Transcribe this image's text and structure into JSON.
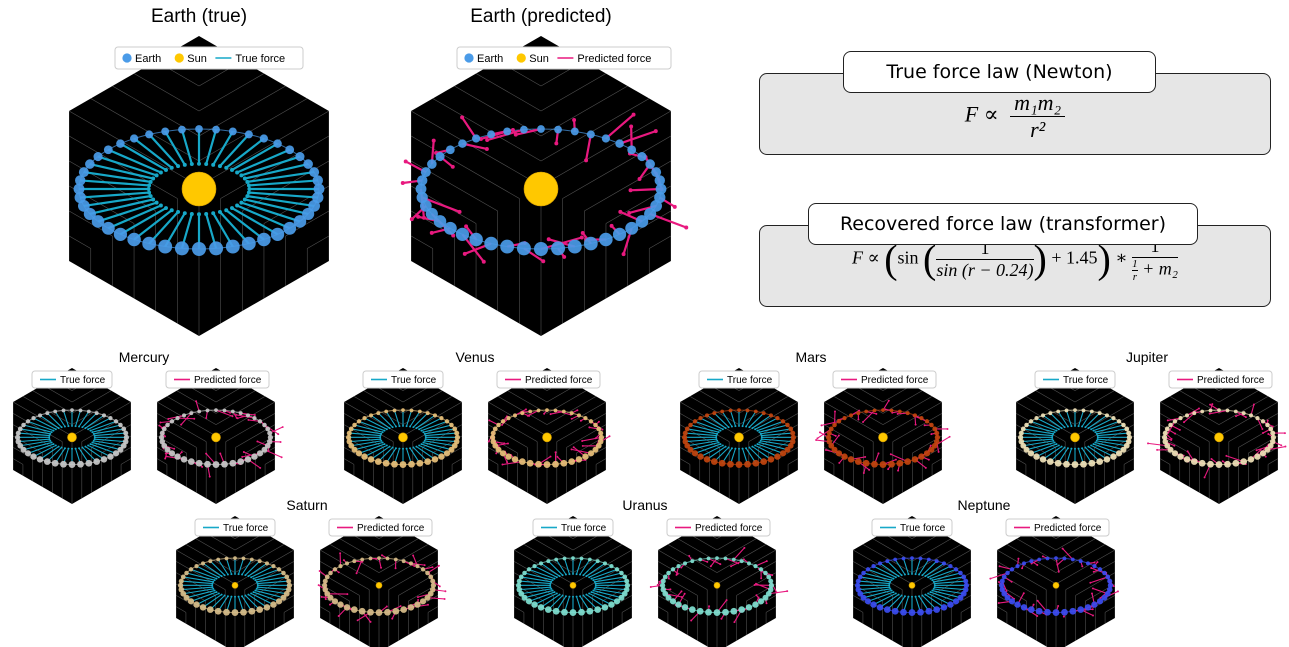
{
  "colors": {
    "panel_bg": "#000000",
    "grid": "#666666",
    "sun": "#ffc800",
    "true_force": "#17a8c8",
    "predicted_force": "#e8197f",
    "earth": "#4a9be8"
  },
  "big_panels": [
    {
      "title": "Earth (true)",
      "legend": {
        "planet": "Earth",
        "sun": "Sun",
        "force": "True force"
      },
      "mode": "true",
      "planet_color": "#4a9be8"
    },
    {
      "title": "Earth (predicted)",
      "legend": {
        "planet": "Earth",
        "sun": "Sun",
        "force": "Predicted force"
      },
      "mode": "pred",
      "planet_color": "#4a9be8"
    }
  ],
  "small_panels": [
    {
      "name": "Mercury",
      "color": "#c9c9c9",
      "sun_size": "large",
      "true_label": "True force",
      "pred_label": "Predicted force"
    },
    {
      "name": "Venus",
      "color": "#e8c07a",
      "sun_size": "large",
      "true_label": "True force",
      "pred_label": "Predicted force"
    },
    {
      "name": "Mars",
      "color": "#c1440e",
      "sun_size": "large",
      "true_label": "True force",
      "pred_label": "Predicted force"
    },
    {
      "name": "Jupiter",
      "color": "#f0e2b8",
      "sun_size": "large",
      "true_label": "True force",
      "pred_label": "Predicted force"
    },
    {
      "name": "Saturn",
      "color": "#d8be8a",
      "sun_size": "small",
      "true_label": "True force",
      "pred_label": "Predicted force"
    },
    {
      "name": "Uranus",
      "color": "#7fe0d0",
      "sun_size": "small",
      "true_label": "True force",
      "pred_label": "Predicted force"
    },
    {
      "name": "Neptune",
      "color": "#3b4cf0",
      "sun_size": "small",
      "true_label": "True force",
      "pred_label": "Predicted force"
    }
  ],
  "formulas": {
    "true_title": "True force law (Newton)",
    "recovered_title": "Recovered force law (transformer)",
    "true": {
      "lhs": "F",
      "prop": "∝",
      "num": "m₁m₂",
      "den": "r²"
    },
    "recovered": {
      "lhs": "F",
      "prop": "∝",
      "sin": "sin",
      "inner_num": "1",
      "inner_den": "sin (r − 0.24)",
      "plus": "+ 1.45",
      "star": "∗",
      "frac_num": "1",
      "small_num": "1",
      "small_den": "r",
      "plus_m": "+ m₂"
    }
  }
}
